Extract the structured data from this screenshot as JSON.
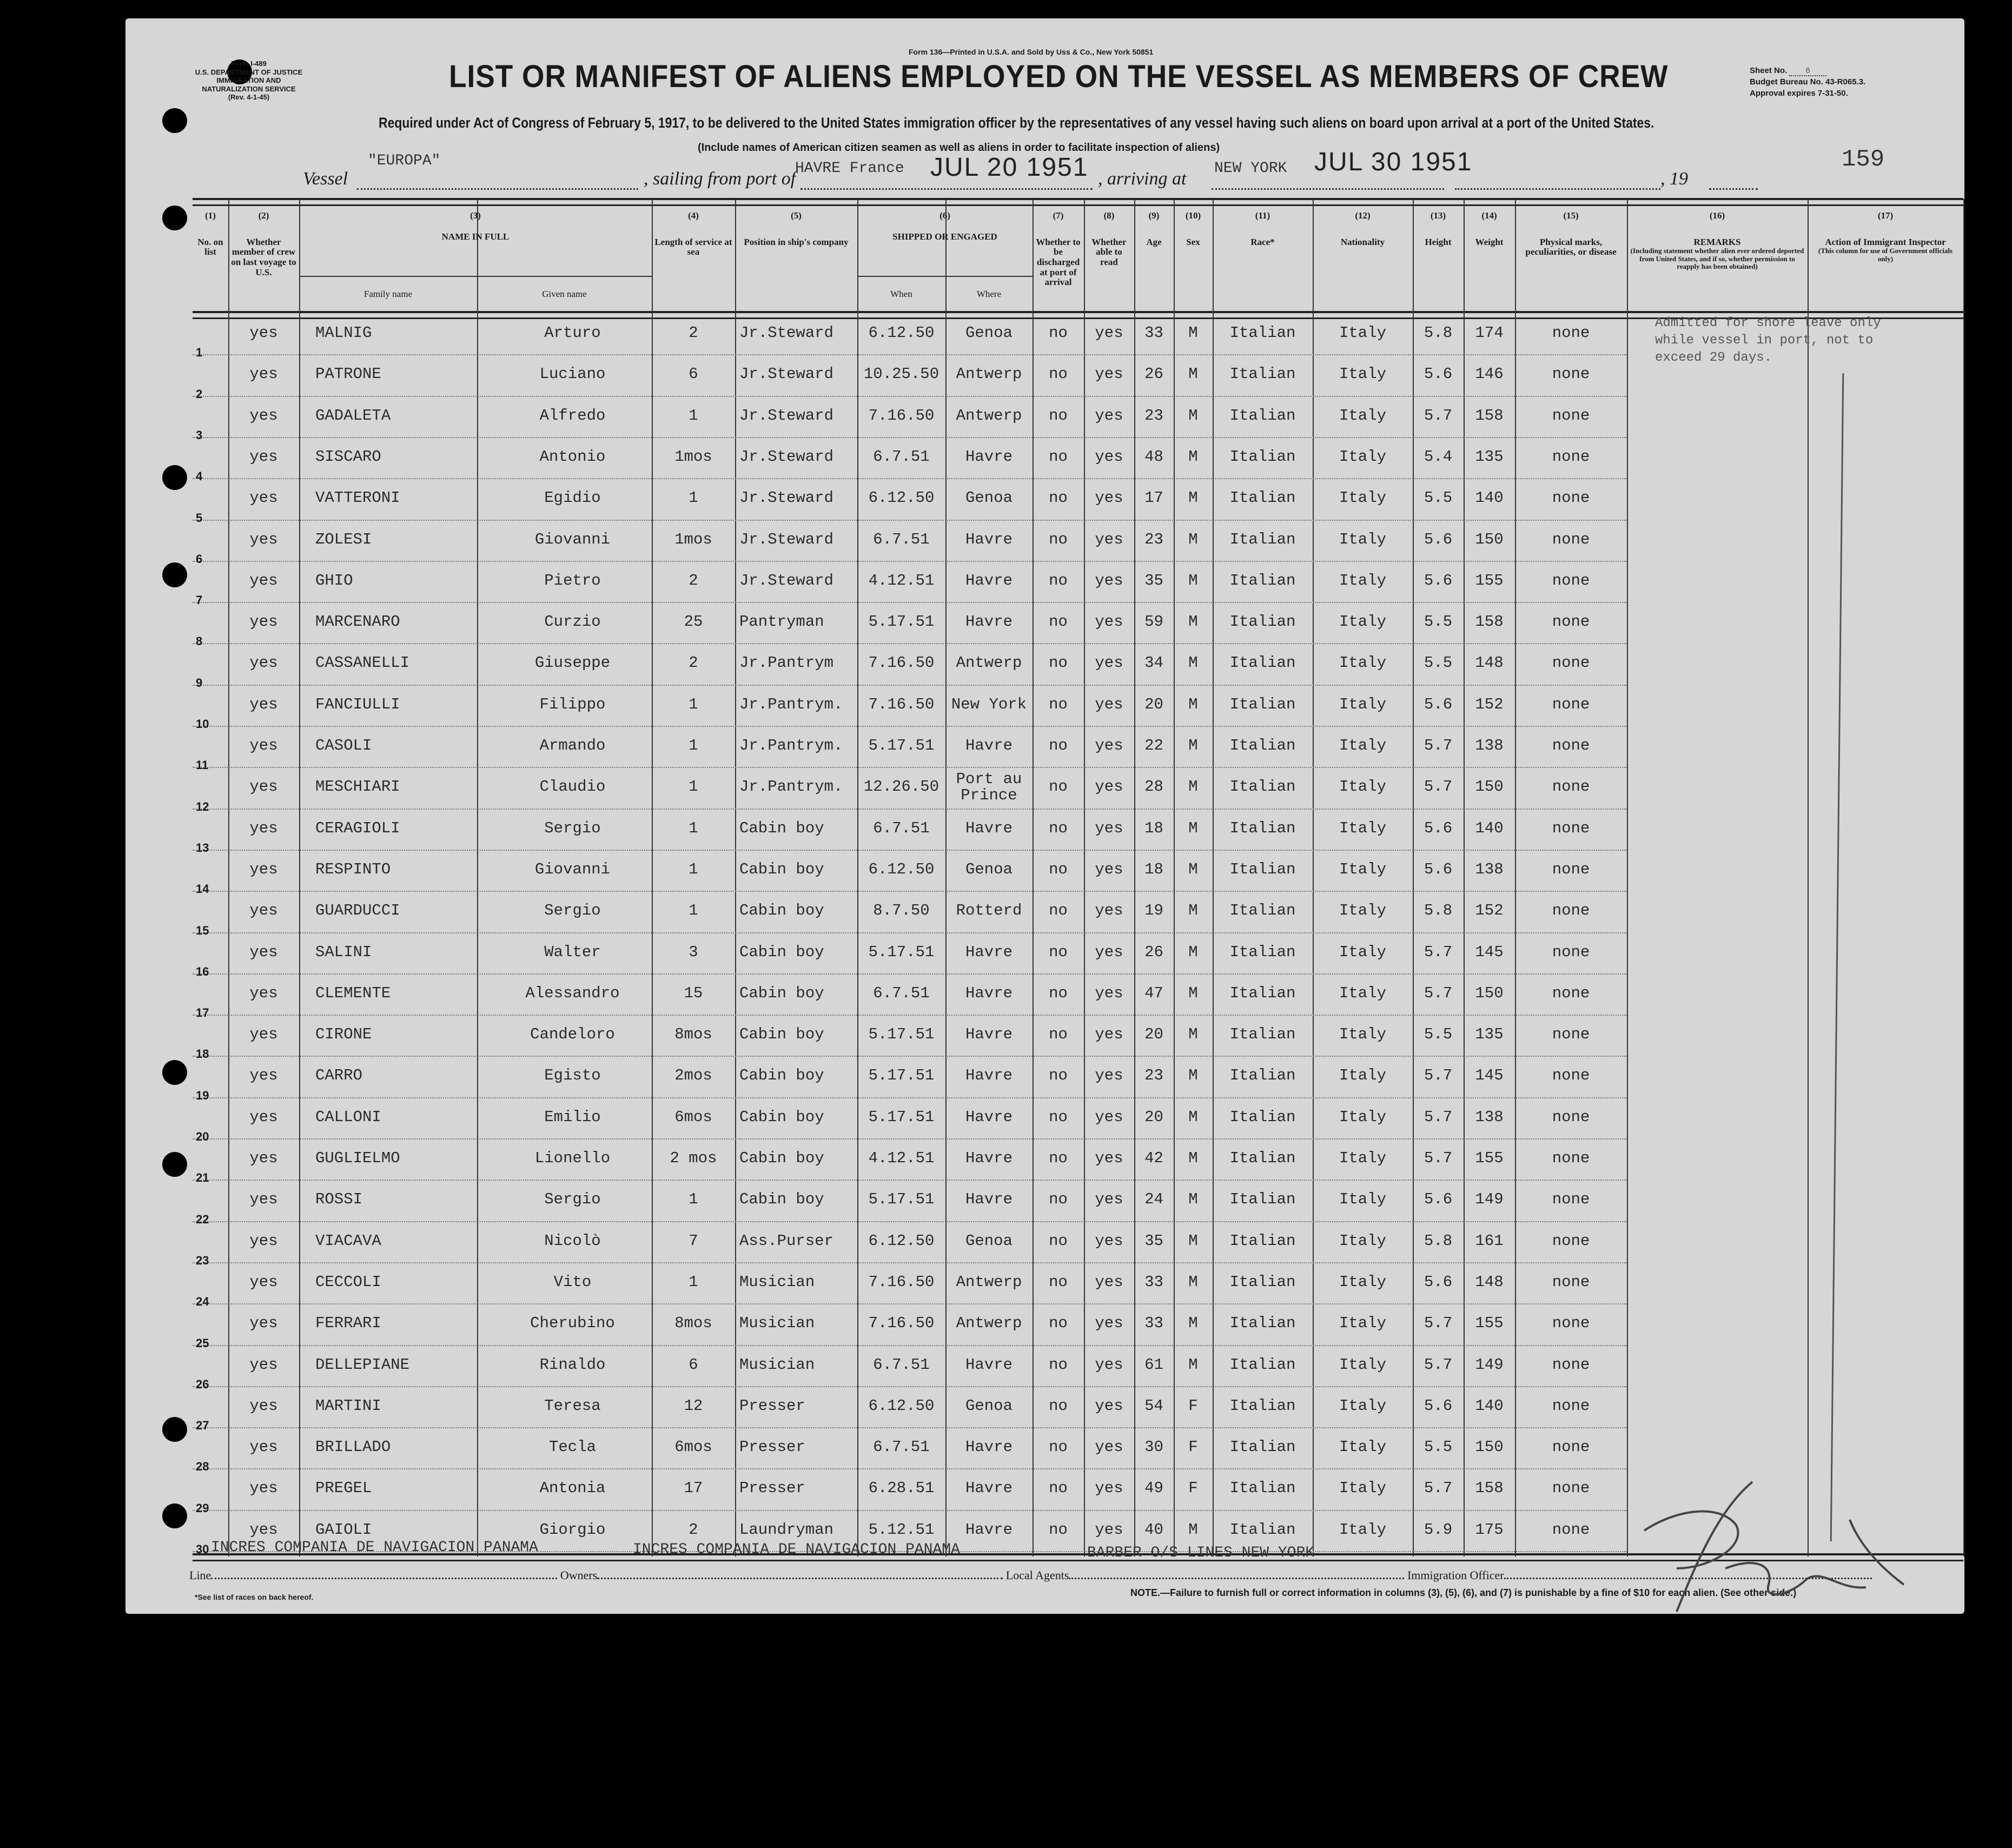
{
  "header": {
    "printer_line": "Form 136—Printed in U.S.A. and Sold by Uss & Co., New York 50851",
    "form_id": [
      "Form I-489",
      "U.S. DEPARTMENT OF JUSTICE",
      "IMMIGRATION AND NATURALIZATION SERVICE",
      "(Rev. 4-1-45)"
    ],
    "title": "LIST OR MANIFEST OF ALIENS EMPLOYED ON THE VESSEL AS MEMBERS OF CREW",
    "required": "Required under Act of Congress of February 5, 1917, to be delivered to the United States immigration officer by the representatives of any vessel having such aliens on board upon arrival at a port of the United States.",
    "include_note": "(Include names of American citizen seamen as well as aliens in order to facilitate inspection of aliens)",
    "sheet_label": "Sheet No.",
    "sheet_no": "6",
    "budget": "Budget Bureau No. 43-R065.3.",
    "approval": "Approval expires 7-31-50.",
    "page_number": "159",
    "vessel_label": "Vessel",
    "vessel": "\"EUROPA\"",
    "sailing_label": ", sailing from port of",
    "sailing_port": "HAVRE France",
    "sailing_date": "JUL 20 1951",
    "arriving_label": ", arriving at",
    "arriving_port": "NEW YORK",
    "arriving_date": "JUL 30 1951",
    "year_label": ", 19"
  },
  "columns": [
    {
      "num": "(1)",
      "label": "No. on list"
    },
    {
      "num": "(2)",
      "label": "Whether member of crew on last voyage to U.S."
    },
    {
      "num": "(3)",
      "label": "NAME IN FULL",
      "sub": [
        "Family name",
        "Given name"
      ]
    },
    {
      "num": "(4)",
      "label": "Length of service at sea"
    },
    {
      "num": "(5)",
      "label": "Position in ship's company"
    },
    {
      "num": "(6)",
      "label": "SHIPPED OR ENGAGED",
      "sub": [
        "When",
        "Where"
      ]
    },
    {
      "num": "(7)",
      "label": "Whether to be discharged at port of arrival"
    },
    {
      "num": "(8)",
      "label": "Whether able to read"
    },
    {
      "num": "(9)",
      "label": "Age"
    },
    {
      "num": "(10)",
      "label": "Sex"
    },
    {
      "num": "(11)",
      "label": "Race*"
    },
    {
      "num": "(12)",
      "label": "Nationality"
    },
    {
      "num": "(13)",
      "label": "Height"
    },
    {
      "num": "(14)",
      "label": "Weight"
    },
    {
      "num": "(15)",
      "label": "Physical marks, peculiarities, or disease"
    },
    {
      "num": "(16)",
      "label": "REMARKS",
      "note": "(Including statement whether alien ever ordered deported from United States, and if so, whether permission to reapply has been obtained)"
    },
    {
      "num": "(17)",
      "label": "Action of Immigrant Inspector",
      "note": "(This column for use of Government officials only)"
    }
  ],
  "remarks": [
    "Admitted for shore leave only",
    "while vessel in port, not to",
    "exceed 29 days."
  ],
  "rows": [
    {
      "no": "1",
      "crew": "yes",
      "family": "MALNIG",
      "given": "Arturo",
      "service": "2",
      "position": "Jr.Steward",
      "when": "6.12.50",
      "where": "Genoa",
      "discharged": "no",
      "read": "yes",
      "age": "33",
      "sex": "M",
      "race": "Italian",
      "nationality": "Italy",
      "height": "5.8",
      "weight": "174",
      "marks": "none"
    },
    {
      "no": "2",
      "crew": "yes",
      "family": "PATRONE",
      "given": "Luciano",
      "service": "6",
      "position": "Jr.Steward",
      "when": "10.25.50",
      "where": "Antwerp",
      "discharged": "no",
      "read": "yes",
      "age": "26",
      "sex": "M",
      "race": "Italian",
      "nationality": "Italy",
      "height": "5.6",
      "weight": "146",
      "marks": "none"
    },
    {
      "no": "3",
      "crew": "yes",
      "family": "GADALETA",
      "given": "Alfredo",
      "service": "1",
      "position": "Jr.Steward",
      "when": "7.16.50",
      "where": "Antwerp",
      "discharged": "no",
      "read": "yes",
      "age": "23",
      "sex": "M",
      "race": "Italian",
      "nationality": "Italy",
      "height": "5.7",
      "weight": "158",
      "marks": "none"
    },
    {
      "no": "4",
      "crew": "yes",
      "family": "SISCARO",
      "given": "Antonio",
      "service": "1mos",
      "position": "Jr.Steward",
      "when": "6.7.51",
      "where": "Havre",
      "discharged": "no",
      "read": "yes",
      "age": "48",
      "sex": "M",
      "race": "Italian",
      "nationality": "Italy",
      "height": "5.4",
      "weight": "135",
      "marks": "none"
    },
    {
      "no": "5",
      "crew": "yes",
      "family": "VATTERONI",
      "given": "Egidio",
      "service": "1",
      "position": "Jr.Steward",
      "when": "6.12.50",
      "where": "Genoa",
      "discharged": "no",
      "read": "yes",
      "age": "17",
      "sex": "M",
      "race": "Italian",
      "nationality": "Italy",
      "height": "5.5",
      "weight": "140",
      "marks": "none"
    },
    {
      "no": "6",
      "crew": "yes",
      "family": "ZOLESI",
      "given": "Giovanni",
      "service": "1mos",
      "position": "Jr.Steward",
      "when": "6.7.51",
      "where": "Havre",
      "discharged": "no",
      "read": "yes",
      "age": "23",
      "sex": "M",
      "race": "Italian",
      "nationality": "Italy",
      "height": "5.6",
      "weight": "150",
      "marks": "none"
    },
    {
      "no": "7",
      "crew": "yes",
      "family": "GHIO",
      "given": "Pietro",
      "service": "2",
      "position": "Jr.Steward",
      "when": "4.12.51",
      "where": "Havre",
      "discharged": "no",
      "read": "yes",
      "age": "35",
      "sex": "M",
      "race": "Italian",
      "nationality": "Italy",
      "height": "5.6",
      "weight": "155",
      "marks": "none"
    },
    {
      "no": "8",
      "crew": "yes",
      "family": "MARCENARO",
      "given": "Curzio",
      "service": "25",
      "position": "Pantryman",
      "when": "5.17.51",
      "where": "Havre",
      "discharged": "no",
      "read": "yes",
      "age": "59",
      "sex": "M",
      "race": "Italian",
      "nationality": "Italy",
      "height": "5.5",
      "weight": "158",
      "marks": "none"
    },
    {
      "no": "9",
      "crew": "yes",
      "family": "CASSANELLI",
      "given": "Giuseppe",
      "service": "2",
      "position": "Jr.Pantrym",
      "when": "7.16.50",
      "where": "Antwerp",
      "discharged": "no",
      "read": "yes",
      "age": "34",
      "sex": "M",
      "race": "Italian",
      "nationality": "Italy",
      "height": "5.5",
      "weight": "148",
      "marks": "none"
    },
    {
      "no": "10",
      "crew": "yes",
      "family": "FANCIULLI",
      "given": "Filippo",
      "service": "1",
      "position": "Jr.Pantrym.",
      "when": "7.16.50",
      "where": "New York",
      "discharged": "no",
      "read": "yes",
      "age": "20",
      "sex": "M",
      "race": "Italian",
      "nationality": "Italy",
      "height": "5.6",
      "weight": "152",
      "marks": "none"
    },
    {
      "no": "11",
      "crew": "yes",
      "family": "CASOLI",
      "given": "Armando",
      "service": "1",
      "position": "Jr.Pantrym.",
      "when": "5.17.51",
      "where": "Havre",
      "discharged": "no",
      "read": "yes",
      "age": "22",
      "sex": "M",
      "race": "Italian",
      "nationality": "Italy",
      "height": "5.7",
      "weight": "138",
      "marks": "none"
    },
    {
      "no": "12",
      "crew": "yes",
      "family": "MESCHIARI",
      "given": "Claudio",
      "service": "1",
      "position": "Jr.Pantrym.",
      "when": "12.26.50",
      "where": "Port au Prince",
      "discharged": "no",
      "read": "yes",
      "age": "28",
      "sex": "M",
      "race": "Italian",
      "nationality": "Italy",
      "height": "5.7",
      "weight": "150",
      "marks": "none"
    },
    {
      "no": "13",
      "crew": "yes",
      "family": "CERAGIOLI",
      "given": "Sergio",
      "service": "1",
      "position": "Cabin boy",
      "when": "6.7.51",
      "where": "Havre",
      "discharged": "no",
      "read": "yes",
      "age": "18",
      "sex": "M",
      "race": "Italian",
      "nationality": "Italy",
      "height": "5.6",
      "weight": "140",
      "marks": "none"
    },
    {
      "no": "14",
      "crew": "yes",
      "family": "RESPINTO",
      "given": "Giovanni",
      "service": "1",
      "position": "Cabin boy",
      "when": "6.12.50",
      "where": "Genoa",
      "discharged": "no",
      "read": "yes",
      "age": "18",
      "sex": "M",
      "race": "Italian",
      "nationality": "Italy",
      "height": "5.6",
      "weight": "138",
      "marks": "none"
    },
    {
      "no": "15",
      "crew": "yes",
      "family": "GUARDUCCI",
      "given": "Sergio",
      "service": "1",
      "position": "Cabin boy",
      "when": "8.7.50",
      "where": "Rotterd",
      "discharged": "no",
      "read": "yes",
      "age": "19",
      "sex": "M",
      "race": "Italian",
      "nationality": "Italy",
      "height": "5.8",
      "weight": "152",
      "marks": "none"
    },
    {
      "no": "16",
      "crew": "yes",
      "family": "SALINI",
      "given": "Walter",
      "service": "3",
      "position": "Cabin boy",
      "when": "5.17.51",
      "where": "Havre",
      "discharged": "no",
      "read": "yes",
      "age": "26",
      "sex": "M",
      "race": "Italian",
      "nationality": "Italy",
      "height": "5.7",
      "weight": "145",
      "marks": "none"
    },
    {
      "no": "17",
      "crew": "yes",
      "family": "CLEMENTE",
      "given": "Alessandro",
      "service": "15",
      "position": "Cabin boy",
      "when": "6.7.51",
      "where": "Havre",
      "discharged": "no",
      "read": "yes",
      "age": "47",
      "sex": "M",
      "race": "Italian",
      "nationality": "Italy",
      "height": "5.7",
      "weight": "150",
      "marks": "none"
    },
    {
      "no": "18",
      "crew": "yes",
      "family": "CIRONE",
      "given": "Candeloro",
      "service": "8mos",
      "position": "Cabin boy",
      "when": "5.17.51",
      "where": "Havre",
      "discharged": "no",
      "read": "yes",
      "age": "20",
      "sex": "M",
      "race": "Italian",
      "nationality": "Italy",
      "height": "5.5",
      "weight": "135",
      "marks": "none"
    },
    {
      "no": "19",
      "crew": "yes",
      "family": "CARRO",
      "given": "Egisto",
      "service": "2mos",
      "position": "Cabin boy",
      "when": "5.17.51",
      "where": "Havre",
      "discharged": "no",
      "read": "yes",
      "age": "23",
      "sex": "M",
      "race": "Italian",
      "nationality": "Italy",
      "height": "5.7",
      "weight": "145",
      "marks": "none"
    },
    {
      "no": "20",
      "crew": "yes",
      "family": "CALLONI",
      "given": "Emilio",
      "service": "6mos",
      "position": "Cabin boy",
      "when": "5.17.51",
      "where": "Havre",
      "discharged": "no",
      "read": "yes",
      "age": "20",
      "sex": "M",
      "race": "Italian",
      "nationality": "Italy",
      "height": "5.7",
      "weight": "138",
      "marks": "none"
    },
    {
      "no": "21",
      "crew": "yes",
      "family": "GUGLIELMO",
      "given": "Lionello",
      "service": "2 mos",
      "position": "Cabin boy",
      "when": "4.12.51",
      "where": "Havre",
      "discharged": "no",
      "read": "yes",
      "age": "42",
      "sex": "M",
      "race": "Italian",
      "nationality": "Italy",
      "height": "5.7",
      "weight": "155",
      "marks": "none"
    },
    {
      "no": "22",
      "crew": "yes",
      "family": "ROSSI",
      "given": "Sergio",
      "service": "1",
      "position": "Cabin boy",
      "when": "5.17.51",
      "where": "Havre",
      "discharged": "no",
      "read": "yes",
      "age": "24",
      "sex": "M",
      "race": "Italian",
      "nationality": "Italy",
      "height": "5.6",
      "weight": "149",
      "marks": "none"
    },
    {
      "no": "23",
      "crew": "yes",
      "family": "VIACAVA",
      "given": "Nicolò",
      "service": "7",
      "position": "Ass.Purser",
      "when": "6.12.50",
      "where": "Genoa",
      "discharged": "no",
      "read": "yes",
      "age": "35",
      "sex": "M",
      "race": "Italian",
      "nationality": "Italy",
      "height": "5.8",
      "weight": "161",
      "marks": "none"
    },
    {
      "no": "24",
      "crew": "yes",
      "family": "CECCOLI",
      "given": "Vito",
      "service": "1",
      "position": "Musician",
      "when": "7.16.50",
      "where": "Antwerp",
      "discharged": "no",
      "read": "yes",
      "age": "33",
      "sex": "M",
      "race": "Italian",
      "nationality": "Italy",
      "height": "5.6",
      "weight": "148",
      "marks": "none"
    },
    {
      "no": "25",
      "crew": "yes",
      "family": "FERRARI",
      "given": "Cherubino",
      "service": "8mos",
      "position": "Musician",
      "when": "7.16.50",
      "where": "Antwerp",
      "discharged": "no",
      "read": "yes",
      "age": "33",
      "sex": "M",
      "race": "Italian",
      "nationality": "Italy",
      "height": "5.7",
      "weight": "155",
      "marks": "none"
    },
    {
      "no": "26",
      "crew": "yes",
      "family": "DELLEPIANE",
      "given": "Rinaldo",
      "service": "6",
      "position": "Musician",
      "when": "6.7.51",
      "where": "Havre",
      "discharged": "no",
      "read": "yes",
      "age": "61",
      "sex": "M",
      "race": "Italian",
      "nationality": "Italy",
      "height": "5.7",
      "weight": "149",
      "marks": "none"
    },
    {
      "no": "27",
      "crew": "yes",
      "family": "MARTINI",
      "given": "Teresa",
      "service": "12",
      "position": "Presser",
      "when": "6.12.50",
      "where": "Genoa",
      "discharged": "no",
      "read": "yes",
      "age": "54",
      "sex": "F",
      "race": "Italian",
      "nationality": "Italy",
      "height": "5.6",
      "weight": "140",
      "marks": "none"
    },
    {
      "no": "28",
      "crew": "yes",
      "family": "BRILLADO",
      "given": "Tecla",
      "service": "6mos",
      "position": "Presser",
      "when": "6.7.51",
      "where": "Havre",
      "discharged": "no",
      "read": "yes",
      "age": "30",
      "sex": "F",
      "race": "Italian",
      "nationality": "Italy",
      "height": "5.5",
      "weight": "150",
      "marks": "none"
    },
    {
      "no": "29",
      "crew": "yes",
      "family": "PREGEL",
      "given": "Antonia",
      "service": "17",
      "position": "Presser",
      "when": "6.28.51",
      "where": "Havre",
      "discharged": "no",
      "read": "yes",
      "age": "49",
      "sex": "F",
      "race": "Italian",
      "nationality": "Italy",
      "height": "5.7",
      "weight": "158",
      "marks": "none"
    },
    {
      "no": "30",
      "crew": "yes",
      "family": "GAIOLI",
      "given": "Giorgio",
      "service": "2",
      "position": "Laundryman",
      "when": "5.12.51",
      "where": "Havre",
      "discharged": "no",
      "read": "yes",
      "age": "40",
      "sex": "M",
      "race": "Italian",
      "nationality": "Italy",
      "height": "5.9",
      "weight": "175",
      "marks": "none"
    }
  ],
  "footer": {
    "line_label": "Line",
    "line_value": "INCRES COMPANIA DE NAVIGACION PANAMA",
    "owners_label": "Owners",
    "owners_value": "INCRES COMPANIA DE NAVIGACION PANAMA",
    "agents_label": "Local Agents",
    "agents_value": "BARBER O/S LINES NEW YORK",
    "officer_label": "Immigration Officer",
    "races_note": "*See list of races on back hereof.",
    "note": "NOTE.—Failure to furnish full or correct information in columns (3), (5), (6), and (7) is punishable by a fine of $10 for each alien. (See other side.)"
  }
}
